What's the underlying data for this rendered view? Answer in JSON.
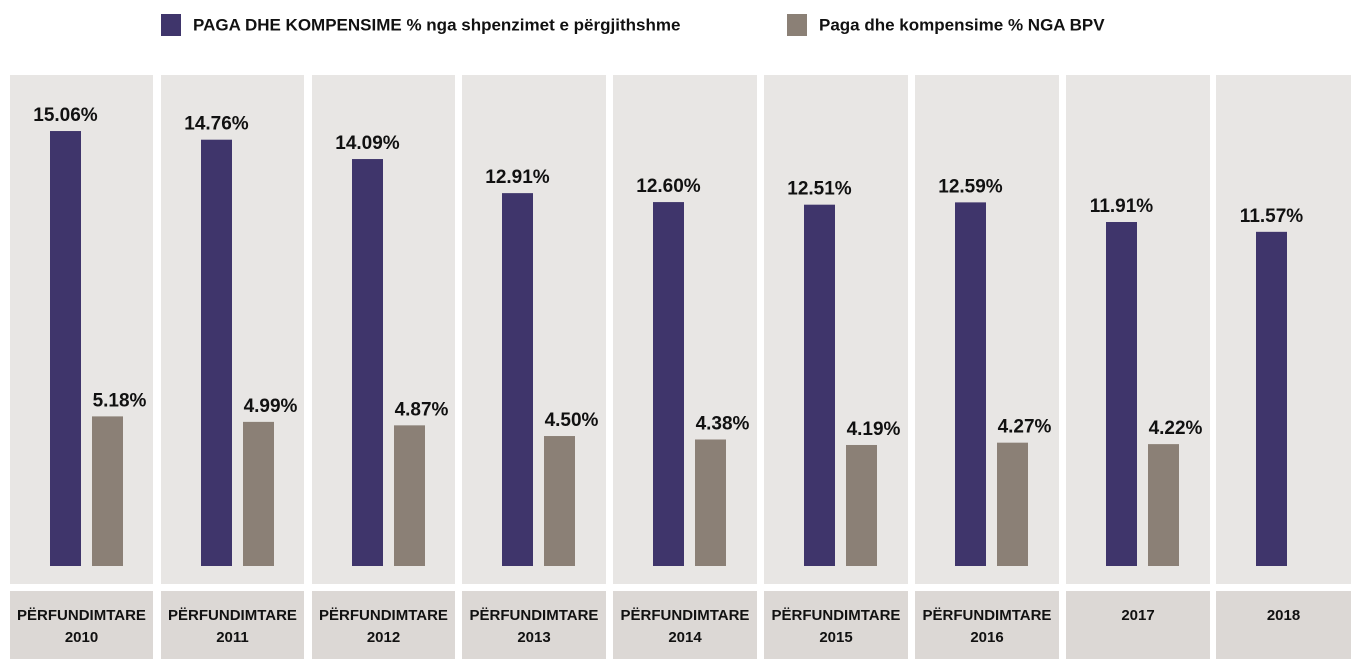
{
  "chart_data": {
    "type": "bar",
    "categories": [
      [
        "PËRFUNDIMTARE",
        "2010"
      ],
      [
        "PËRFUNDIMTARE",
        "2011"
      ],
      [
        "PËRFUNDIMTARE",
        "2012"
      ],
      [
        "PËRFUNDIMTARE",
        "2013"
      ],
      [
        "PËRFUNDIMTARE",
        "2014"
      ],
      [
        "PËRFUNDIMTARE",
        "2015"
      ],
      [
        "PËRFUNDIMTARE",
        "2016"
      ],
      [
        "2017"
      ],
      [
        "2018"
      ]
    ],
    "series": [
      {
        "name": "PAGA DHE KOMPENSIME % nga shpenzimet e përgjithshme",
        "color": "#3f356b",
        "values": [
          15.06,
          14.76,
          14.09,
          12.91,
          12.6,
          12.51,
          12.59,
          11.91,
          11.57
        ],
        "value_labels": [
          "15.06%",
          "14.76%",
          "14.09%",
          "12.91%",
          "12.60%",
          "12.51%",
          "12.59%",
          "11.91%",
          "11.57%"
        ]
      },
      {
        "name": "Paga dhe kompensime % NGA BPV",
        "color": "#8b8076",
        "values": [
          5.18,
          4.99,
          4.87,
          4.5,
          4.38,
          4.19,
          4.27,
          4.22,
          null
        ],
        "value_labels": [
          "5.18%",
          "4.99%",
          "4.87%",
          "4.50%",
          "4.38%",
          "4.19%",
          "4.27%",
          "4.22%",
          null
        ]
      }
    ],
    "ylim": [
      0,
      17
    ]
  }
}
